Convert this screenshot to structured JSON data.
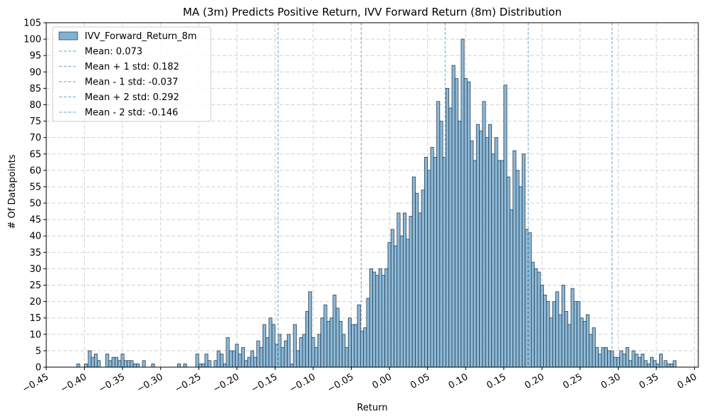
{
  "chart_data": {
    "type": "bar",
    "title": "MA (3m) Predicts Positive Return, IVV Forward Return (8m) Distribution",
    "xlabel": "Return",
    "ylabel": "# Of Datapoints",
    "xlim": [
      -0.45,
      0.405
    ],
    "ylim": [
      0,
      105
    ],
    "xticks": [
      -0.45,
      -0.4,
      -0.35,
      -0.3,
      -0.25,
      -0.2,
      -0.15,
      -0.1,
      -0.05,
      0.0,
      0.05,
      0.1,
      0.15,
      0.2,
      0.25,
      0.3,
      0.35,
      0.4
    ],
    "xtick_labels": [
      "−0.45",
      "−0.40",
      "−0.35",
      "−0.30",
      "−0.25",
      "−0.20",
      "−0.15",
      "−0.10",
      "−0.05",
      "0.00",
      "0.05",
      "0.10",
      "0.15",
      "0.20",
      "0.25",
      "0.30",
      "0.35",
      "0.40"
    ],
    "yticks": [
      0,
      5,
      10,
      15,
      20,
      25,
      30,
      35,
      40,
      45,
      50,
      55,
      60,
      65,
      70,
      75,
      80,
      85,
      90,
      95,
      100,
      105
    ],
    "grid": true,
    "legend_position": "upper-left",
    "bin_width": 0.00397,
    "series": [
      {
        "name": "IVV_Forward_Return_8m",
        "color": "#7fb3d5",
        "edge_color": "#2c3e50",
        "bins": [
          [
            -0.41,
            1
          ],
          [
            -0.4,
            1
          ],
          [
            -0.395,
            5
          ],
          [
            -0.391,
            3
          ],
          [
            -0.387,
            4
          ],
          [
            -0.383,
            2
          ],
          [
            -0.372,
            4
          ],
          [
            -0.368,
            2
          ],
          [
            -0.364,
            3
          ],
          [
            -0.36,
            3
          ],
          [
            -0.356,
            2
          ],
          [
            -0.352,
            4
          ],
          [
            -0.348,
            2
          ],
          [
            -0.344,
            2
          ],
          [
            -0.34,
            2
          ],
          [
            -0.336,
            1
          ],
          [
            -0.332,
            1
          ],
          [
            -0.324,
            2
          ],
          [
            -0.312,
            1
          ],
          [
            -0.278,
            1
          ],
          [
            -0.27,
            1
          ],
          [
            -0.254,
            4
          ],
          [
            -0.25,
            1
          ],
          [
            -0.246,
            1
          ],
          [
            -0.242,
            4
          ],
          [
            -0.238,
            2
          ],
          [
            -0.23,
            2
          ],
          [
            -0.226,
            5
          ],
          [
            -0.222,
            4
          ],
          [
            -0.218,
            1
          ],
          [
            -0.214,
            9
          ],
          [
            -0.21,
            5
          ],
          [
            -0.206,
            5
          ],
          [
            -0.202,
            7
          ],
          [
            -0.198,
            4
          ],
          [
            -0.194,
            6
          ],
          [
            -0.19,
            2
          ],
          [
            -0.186,
            3
          ],
          [
            -0.182,
            5
          ],
          [
            -0.178,
            3
          ],
          [
            -0.174,
            8
          ],
          [
            -0.17,
            6
          ],
          [
            -0.166,
            13
          ],
          [
            -0.162,
            9
          ],
          [
            -0.158,
            15
          ],
          [
            -0.154,
            13
          ],
          [
            -0.15,
            7
          ],
          [
            -0.146,
            10
          ],
          [
            -0.142,
            6
          ],
          [
            -0.138,
            8
          ],
          [
            -0.134,
            10
          ],
          [
            -0.13,
            1
          ],
          [
            -0.126,
            13
          ],
          [
            -0.122,
            5
          ],
          [
            -0.118,
            9
          ],
          [
            -0.114,
            10
          ],
          [
            -0.11,
            17
          ],
          [
            -0.106,
            23
          ],
          [
            -0.102,
            9
          ],
          [
            -0.098,
            6
          ],
          [
            -0.094,
            10
          ],
          [
            -0.09,
            15
          ],
          [
            -0.086,
            19
          ],
          [
            -0.082,
            14
          ],
          [
            -0.078,
            15
          ],
          [
            -0.074,
            22
          ],
          [
            -0.07,
            18
          ],
          [
            -0.066,
            14
          ],
          [
            -0.062,
            10
          ],
          [
            -0.058,
            6
          ],
          [
            -0.054,
            15
          ],
          [
            -0.05,
            13
          ],
          [
            -0.046,
            13
          ],
          [
            -0.042,
            19
          ],
          [
            -0.038,
            11
          ],
          [
            -0.034,
            12
          ],
          [
            -0.03,
            21
          ],
          [
            -0.026,
            30
          ],
          [
            -0.022,
            29
          ],
          [
            -0.018,
            28
          ],
          [
            -0.014,
            30
          ],
          [
            -0.01,
            28
          ],
          [
            -0.006,
            30
          ],
          [
            -0.002,
            38
          ],
          [
            0.002,
            42
          ],
          [
            0.006,
            37
          ],
          [
            0.01,
            47
          ],
          [
            0.014,
            40
          ],
          [
            0.018,
            47
          ],
          [
            0.022,
            39
          ],
          [
            0.026,
            46
          ],
          [
            0.03,
            58
          ],
          [
            0.034,
            53
          ],
          [
            0.038,
            47
          ],
          [
            0.042,
            54
          ],
          [
            0.046,
            64
          ],
          [
            0.05,
            60
          ],
          [
            0.054,
            67
          ],
          [
            0.058,
            64
          ],
          [
            0.062,
            81
          ],
          [
            0.066,
            75
          ],
          [
            0.07,
            64
          ],
          [
            0.074,
            85
          ],
          [
            0.078,
            79
          ],
          [
            0.082,
            92
          ],
          [
            0.086,
            88
          ],
          [
            0.09,
            75
          ],
          [
            0.094,
            100
          ],
          [
            0.098,
            88
          ],
          [
            0.102,
            87
          ],
          [
            0.106,
            69
          ],
          [
            0.11,
            63
          ],
          [
            0.114,
            74
          ],
          [
            0.118,
            72
          ],
          [
            0.122,
            81
          ],
          [
            0.126,
            70
          ],
          [
            0.13,
            74
          ],
          [
            0.134,
            65
          ],
          [
            0.138,
            70
          ],
          [
            0.142,
            63
          ],
          [
            0.146,
            63
          ],
          [
            0.15,
            86
          ],
          [
            0.154,
            58
          ],
          [
            0.158,
            48
          ],
          [
            0.162,
            66
          ],
          [
            0.166,
            60
          ],
          [
            0.17,
            55
          ],
          [
            0.174,
            65
          ],
          [
            0.178,
            42
          ],
          [
            0.182,
            41
          ],
          [
            0.186,
            32
          ],
          [
            0.19,
            30
          ],
          [
            0.194,
            29
          ],
          [
            0.198,
            25
          ],
          [
            0.202,
            22
          ],
          [
            0.206,
            20
          ],
          [
            0.21,
            15
          ],
          [
            0.214,
            20
          ],
          [
            0.218,
            23
          ],
          [
            0.222,
            16
          ],
          [
            0.226,
            25
          ],
          [
            0.23,
            17
          ],
          [
            0.234,
            13
          ],
          [
            0.238,
            24
          ],
          [
            0.242,
            20
          ],
          [
            0.246,
            20
          ],
          [
            0.25,
            15
          ],
          [
            0.254,
            14
          ],
          [
            0.258,
            16
          ],
          [
            0.262,
            10
          ],
          [
            0.266,
            12
          ],
          [
            0.27,
            6
          ],
          [
            0.274,
            4
          ],
          [
            0.278,
            6
          ],
          [
            0.282,
            6
          ],
          [
            0.286,
            5
          ],
          [
            0.29,
            5
          ],
          [
            0.294,
            3
          ],
          [
            0.298,
            3
          ],
          [
            0.302,
            5
          ],
          [
            0.306,
            4
          ],
          [
            0.31,
            6
          ],
          [
            0.314,
            2
          ],
          [
            0.318,
            5
          ],
          [
            0.322,
            4
          ],
          [
            0.326,
            3
          ],
          [
            0.33,
            4
          ],
          [
            0.334,
            2
          ],
          [
            0.338,
            1
          ],
          [
            0.342,
            3
          ],
          [
            0.346,
            2
          ],
          [
            0.35,
            1
          ],
          [
            0.354,
            4
          ],
          [
            0.36,
            2
          ],
          [
            0.364,
            1
          ],
          [
            0.368,
            1
          ],
          [
            0.372,
            2
          ]
        ]
      }
    ],
    "reference_lines": [
      {
        "label": "Mean: 0.073",
        "x": 0.073
      },
      {
        "label": "Mean + 1 std: 0.182",
        "x": 0.182
      },
      {
        "label": "Mean - 1 std: -0.037",
        "x": -0.037
      },
      {
        "label": "Mean + 2 std: 0.292",
        "x": 0.292
      },
      {
        "label": "Mean - 2 std: -0.146",
        "x": -0.146
      }
    ],
    "reference_line_color": "#7fb3d5"
  }
}
